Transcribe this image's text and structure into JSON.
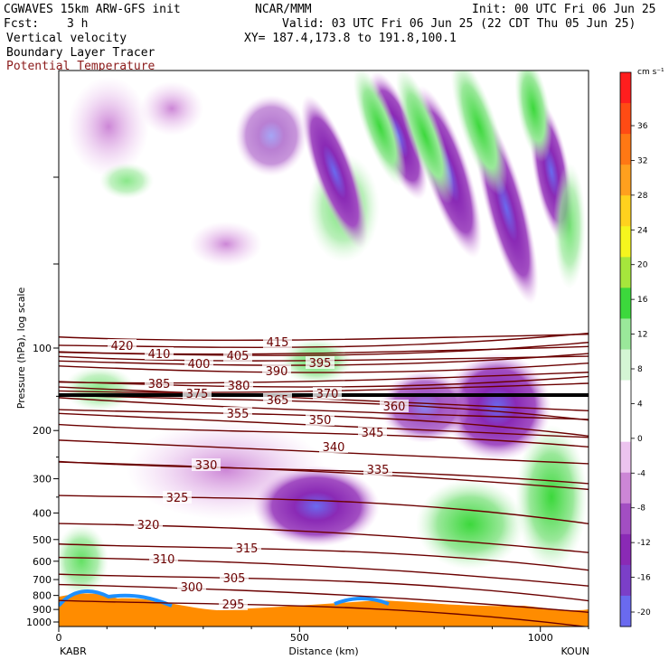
{
  "header": {
    "model": "CGWAVES 15km ARW-GFS init",
    "org": "NCAR/MMM",
    "init": "Init: 00 UTC Fri 06 Jun 25",
    "fcst_label": "Fcst:",
    "fcst_value": "3 h",
    "valid": "Valid: 03 UTC Fri 06 Jun 25 (22 CDT Thu 05 Jun 25)",
    "xy": "XY= 187.4,173.8 to 191.8,100.1",
    "field1": "Vertical velocity",
    "field2": "Boundary Layer Tracer",
    "field3": "Potential Temperature"
  },
  "colors": {
    "theta": "#6b0000",
    "field3_text": "#8b1a1a",
    "terrain_fill": "#ff8c00"
  },
  "chart_data": {
    "type": "cross-section",
    "xlabel": "Distance (km)",
    "ylabel": "Pressure (hPa), log scale",
    "xlim": [
      0,
      1100
    ],
    "x_ticks": [
      0,
      500,
      1000
    ],
    "y_ticks": [
      100,
      200,
      300,
      400,
      500,
      600,
      700,
      800,
      900,
      1000
    ],
    "y_scale": "log",
    "left_station": "KABR",
    "right_station": "KOUN",
    "colorbar": {
      "units": "cm s⁻¹",
      "levels": [
        -20,
        -16,
        -12,
        -8,
        -4,
        0,
        4,
        8,
        12,
        16,
        20,
        24,
        28,
        32,
        36
      ],
      "colors": [
        "#6a6aef",
        "#7b3fc8",
        "#8a2ab5",
        "#a24ec2",
        "#cc86d6",
        "#ecc3ef",
        "#ffffff",
        "#ffffff",
        "#d4f5d4",
        "#9ae89a",
        "#3cd83c",
        "#a6e63c",
        "#f5f51e",
        "#ffd21e",
        "#ffa01e",
        "#ff7814",
        "#ff4b14",
        "#ff1e1e"
      ]
    },
    "theta_contours": [
      {
        "value": 295,
        "label_x": 258,
        "label_y": 670
      },
      {
        "value": 300,
        "label_x": 212,
        "label_y": 651
      },
      {
        "value": 305,
        "label_x": 259,
        "label_y": 641
      },
      {
        "value": 310,
        "label_x": 181,
        "label_y": 620
      },
      {
        "value": 315,
        "label_x": 273,
        "label_y": 608
      },
      {
        "value": 320,
        "label_x": 164,
        "label_y": 582
      },
      {
        "value": 325,
        "label_x": 196,
        "label_y": 552
      },
      {
        "value": 330,
        "label_x": 228,
        "label_y": 516
      },
      {
        "value": 335,
        "label_x": 418,
        "label_y": 521
      },
      {
        "value": 340,
        "label_x": 369,
        "label_y": 496
      },
      {
        "value": 345,
        "label_x": 412,
        "label_y": 480
      },
      {
        "value": 350,
        "label_x": 354,
        "label_y": 466
      },
      {
        "value": 355,
        "label_x": 263,
        "label_y": 459
      },
      {
        "value": 360,
        "label_x": 436,
        "label_y": 451
      },
      {
        "value": 365,
        "label_x": 307,
        "label_y": 444
      },
      {
        "value": 370,
        "label_x": 362,
        "label_y": 437
      },
      {
        "value": 375,
        "label_x": 218,
        "label_y": 437
      },
      {
        "value": 380,
        "label_x": 264,
        "label_y": 428
      },
      {
        "value": 385,
        "label_x": 176,
        "label_y": 426
      },
      {
        "value": 390,
        "label_x": 306,
        "label_y": 412
      },
      {
        "value": 395,
        "label_x": 354,
        "label_y": 403
      },
      {
        "value": 400,
        "label_x": 220,
        "label_y": 404
      },
      {
        "value": 405,
        "label_x": 263,
        "label_y": 395
      },
      {
        "value": 410,
        "label_x": 176,
        "label_y": 393
      },
      {
        "value": 415,
        "label_x": 307,
        "label_y": 380
      },
      {
        "value": 420,
        "label_x": 135,
        "label_y": 384
      }
    ]
  }
}
